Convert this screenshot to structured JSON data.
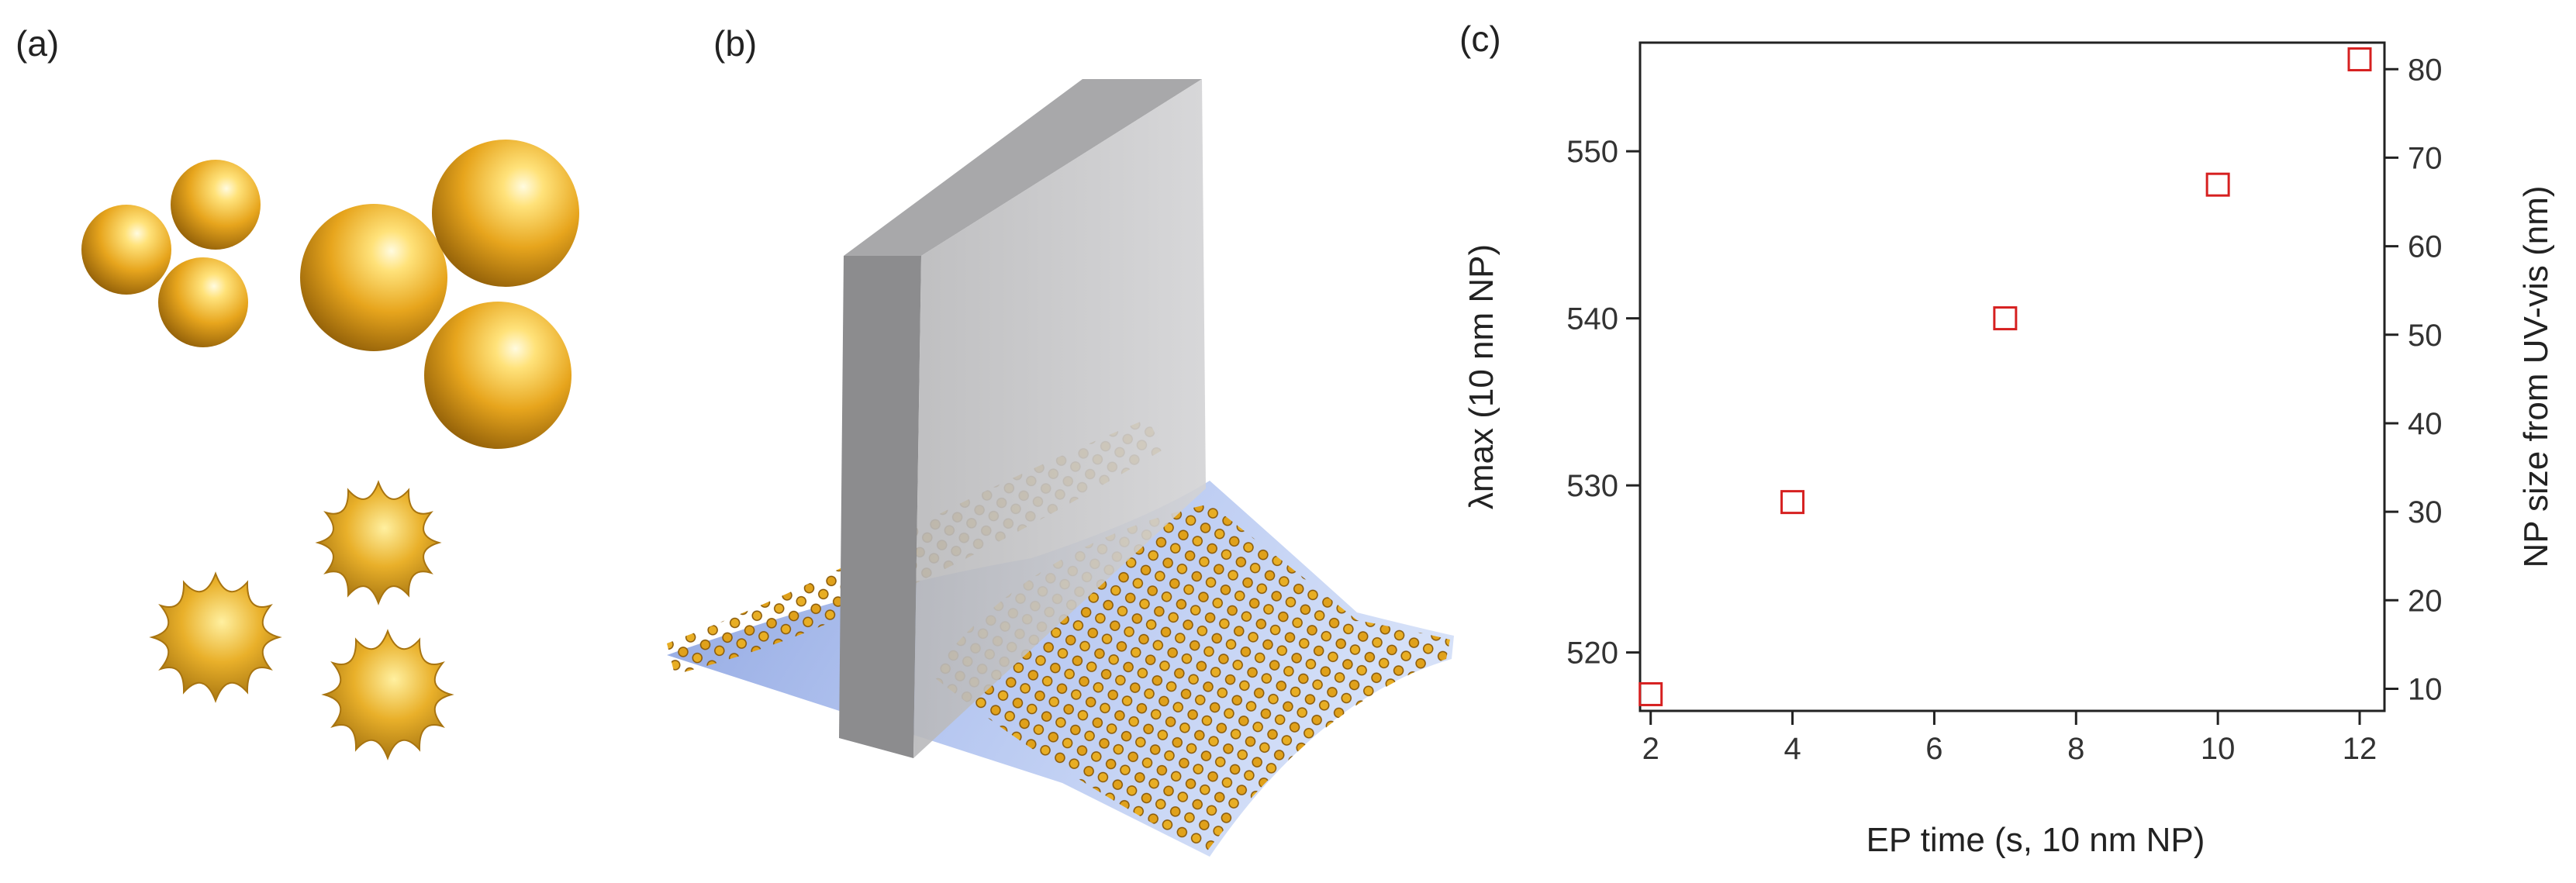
{
  "panels": {
    "a": {
      "label": "(a)"
    },
    "b": {
      "label": "(b)"
    },
    "c": {
      "label": "(c)"
    }
  },
  "colors": {
    "gold_light": "#fff1a0",
    "gold_mid": "#e8a81e",
    "gold_dark": "#8a5a08",
    "marker": "#d62020",
    "slab_front": "#c4c4c6",
    "slab_side": "#8e8e90",
    "substrate": "#8ea6e6"
  },
  "chart_data": {
    "type": "scatter",
    "xlabel": "EP time (s, 10 nm NP)",
    "ylabel": "λmax (10 nm NP)",
    "y2label": "NP size from UV-vis (nm)",
    "xlim": [
      1.85,
      12.35
    ],
    "ylim": [
      516.5,
      556.5
    ],
    "y2lim": [
      7.5,
      83
    ],
    "xticks": [
      2,
      4,
      6,
      8,
      10,
      12
    ],
    "yticks": [
      520,
      530,
      540,
      550
    ],
    "y2ticks": [
      10,
      20,
      30,
      40,
      50,
      60,
      70,
      80
    ],
    "marker": "open-square",
    "grid": false,
    "series": [
      {
        "x": [
          2,
          4,
          7,
          10,
          12
        ],
        "y": [
          517.5,
          529,
          540,
          548,
          555.5
        ]
      }
    ]
  }
}
